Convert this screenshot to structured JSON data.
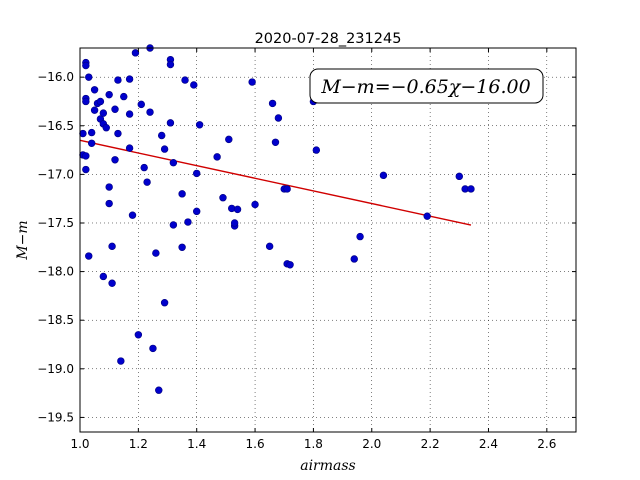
{
  "chart_data": {
    "type": "scatter",
    "title": "2020-07-28_231245",
    "xlabel": "airmass",
    "ylabel": "M−m",
    "xlim": [
      1.0,
      2.7
    ],
    "ylim": [
      -19.65,
      -15.7
    ],
    "x_ticks": [
      1.0,
      1.2,
      1.4,
      1.6,
      1.8,
      2.0,
      2.2,
      2.4,
      2.6
    ],
    "x_tick_labels": [
      "1.0",
      "1.2",
      "1.4",
      "1.6",
      "1.8",
      "2.0",
      "2.2",
      "2.4",
      "2.6"
    ],
    "y_ticks": [
      -16.0,
      -16.5,
      -17.0,
      -17.5,
      -18.0,
      -18.5,
      -19.0,
      -19.5
    ],
    "y_tick_labels": [
      "−16.0",
      "−16.5",
      "−17.0",
      "−17.5",
      "−18.0",
      "−18.5",
      "−19.0",
      "−19.5"
    ],
    "grid": true,
    "annotation": {
      "text": "M−m=−0.65χ−16.00",
      "placement": "top-right"
    },
    "fit_line": {
      "slope": -0.65,
      "intercept": -16.0,
      "x_range": [
        1.0,
        2.34
      ],
      "color": "#d00000"
    },
    "point_color": "#0000cc",
    "points": [
      [
        1.01,
        -16.58
      ],
      [
        1.01,
        -16.8
      ],
      [
        1.02,
        -15.85
      ],
      [
        1.02,
        -15.88
      ],
      [
        1.02,
        -16.22
      ],
      [
        1.02,
        -16.25
      ],
      [
        1.02,
        -16.81
      ],
      [
        1.02,
        -16.95
      ],
      [
        1.03,
        -16.0
      ],
      [
        1.03,
        -17.84
      ],
      [
        1.04,
        -16.57
      ],
      [
        1.04,
        -16.68
      ],
      [
        1.05,
        -16.13
      ],
      [
        1.05,
        -16.34
      ],
      [
        1.06,
        -16.27
      ],
      [
        1.07,
        -16.25
      ],
      [
        1.07,
        -16.43
      ],
      [
        1.08,
        -16.37
      ],
      [
        1.08,
        -16.48
      ],
      [
        1.08,
        -18.05
      ],
      [
        1.09,
        -16.52
      ],
      [
        1.1,
        -17.13
      ],
      [
        1.1,
        -17.3
      ],
      [
        1.1,
        -16.18
      ],
      [
        1.11,
        -17.74
      ],
      [
        1.11,
        -18.12
      ],
      [
        1.12,
        -16.33
      ],
      [
        1.12,
        -16.85
      ],
      [
        1.13,
        -16.58
      ],
      [
        1.13,
        -16.03
      ],
      [
        1.14,
        -18.92
      ],
      [
        1.15,
        -16.2
      ],
      [
        1.17,
        -16.38
      ],
      [
        1.17,
        -16.02
      ],
      [
        1.17,
        -16.73
      ],
      [
        1.18,
        -17.42
      ],
      [
        1.19,
        -15.75
      ],
      [
        1.2,
        -18.65
      ],
      [
        1.21,
        -16.28
      ],
      [
        1.22,
        -16.93
      ],
      [
        1.23,
        -17.08
      ],
      [
        1.24,
        -15.7
      ],
      [
        1.24,
        -16.36
      ],
      [
        1.25,
        -18.79
      ],
      [
        1.26,
        -17.81
      ],
      [
        1.27,
        -19.22
      ],
      [
        1.28,
        -16.6
      ],
      [
        1.29,
        -16.74
      ],
      [
        1.29,
        -18.32
      ],
      [
        1.31,
        -15.82
      ],
      [
        1.31,
        -15.87
      ],
      [
        1.31,
        -16.47
      ],
      [
        1.32,
        -17.52
      ],
      [
        1.32,
        -16.88
      ],
      [
        1.35,
        -17.2
      ],
      [
        1.35,
        -17.75
      ],
      [
        1.36,
        -16.03
      ],
      [
        1.37,
        -17.49
      ],
      [
        1.39,
        -16.08
      ],
      [
        1.4,
        -16.99
      ],
      [
        1.4,
        -17.38
      ],
      [
        1.41,
        -16.49
      ],
      [
        1.47,
        -16.82
      ],
      [
        1.49,
        -17.24
      ],
      [
        1.51,
        -16.64
      ],
      [
        1.52,
        -17.35
      ],
      [
        1.53,
        -17.53
      ],
      [
        1.53,
        -17.5
      ],
      [
        1.54,
        -17.36
      ],
      [
        1.59,
        -16.05
      ],
      [
        1.6,
        -17.31
      ],
      [
        1.65,
        -17.74
      ],
      [
        1.66,
        -16.27
      ],
      [
        1.67,
        -16.67
      ],
      [
        1.68,
        -16.42
      ],
      [
        1.7,
        -17.15
      ],
      [
        1.71,
        -17.15
      ],
      [
        1.71,
        -17.92
      ],
      [
        1.72,
        -17.93
      ],
      [
        1.8,
        -16.25
      ],
      [
        1.81,
        -16.75
      ],
      [
        1.94,
        -17.87
      ],
      [
        1.96,
        -17.64
      ],
      [
        2.04,
        -17.01
      ],
      [
        2.19,
        -17.43
      ],
      [
        2.3,
        -17.02
      ],
      [
        2.32,
        -17.15
      ],
      [
        2.34,
        -17.15
      ]
    ]
  }
}
